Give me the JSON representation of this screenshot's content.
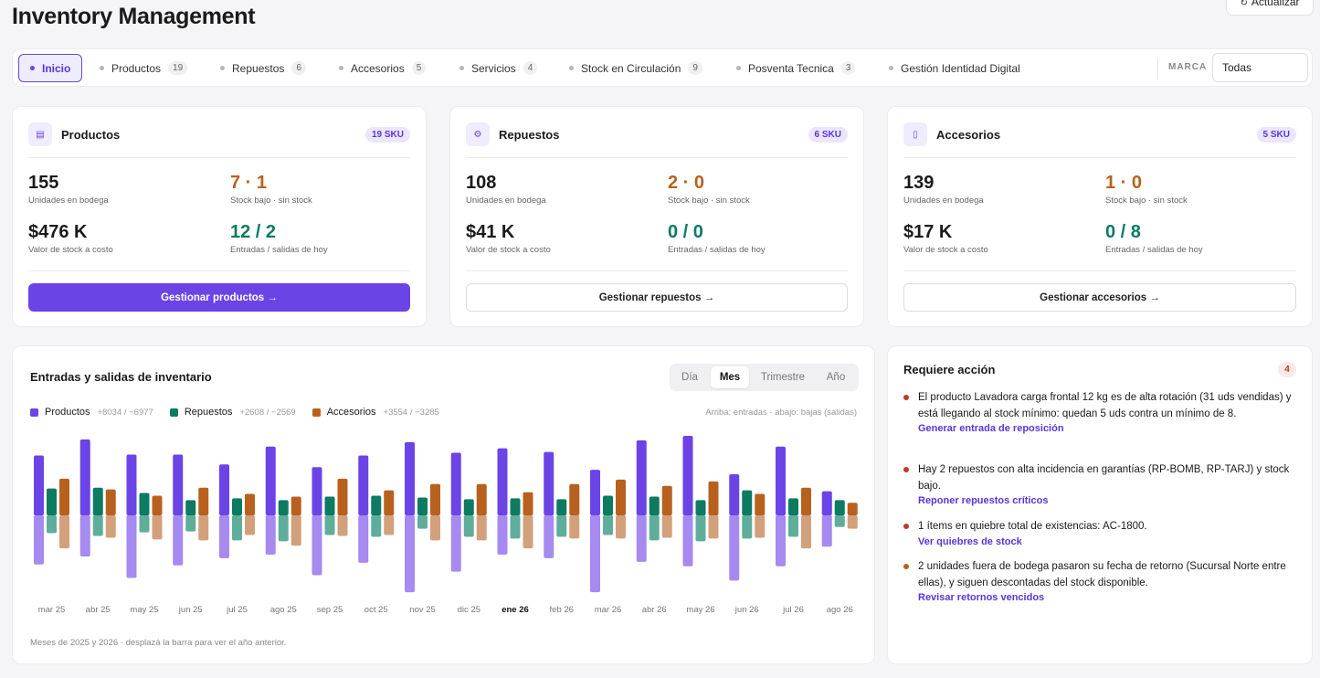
{
  "header": {
    "title": "Inventory Management",
    "refresh_label": "Actualizar",
    "refresh_icon": "refresh-icon"
  },
  "tabs": [
    {
      "label": "Inicio",
      "count": ""
    },
    {
      "label": "Productos",
      "count": "19"
    },
    {
      "label": "Repuestos",
      "count": "6"
    },
    {
      "label": "Accesorios",
      "count": "5"
    },
    {
      "label": "Servicios",
      "count": "4"
    },
    {
      "label": "Stock en Circulación",
      "count": "9"
    },
    {
      "label": "Posventa Tecnica",
      "count": "3"
    },
    {
      "label": "Gestión Identidad Digital",
      "count": ""
    }
  ],
  "brand_filter": {
    "label": "MARCA",
    "value": "Todas"
  },
  "cards": [
    {
      "title": "Productos",
      "icon": "box-icon",
      "sku": "19 SKU",
      "units": "155",
      "units_label": "Unidades en bodega",
      "stock": "7 · 1",
      "stock_label": "Stock bajo · sin stock",
      "value": "$476 K",
      "value_label": "Valor de stock a costo",
      "flow": "12 / 2",
      "flow_label": "Entradas / salidas de hoy",
      "button": "Gestionar productos →"
    },
    {
      "title": "Repuestos",
      "icon": "gear-icon",
      "sku": "6 SKU",
      "units": "108",
      "units_label": "Unidades en bodega",
      "stock": "2 · 0",
      "stock_label": "Stock bajo · sin stock",
      "value": "$41 K",
      "value_label": "Valor de stock a costo",
      "flow": "0 / 0",
      "flow_label": "Entradas / salidas de hoy",
      "button": "Gestionar repuestos →"
    },
    {
      "title": "Accesorios",
      "icon": "device-icon",
      "sku": "5 SKU",
      "units": "139",
      "units_label": "Unidades en bodega",
      "stock": "1 · 0",
      "stock_label": "Stock bajo · sin stock",
      "value": "$17 K",
      "value_label": "Valor de stock a costo",
      "flow": "0 / 8",
      "flow_label": "Entradas / salidas de hoy",
      "button": "Gestionar accesorios →"
    }
  ],
  "chart_panel": {
    "title": "Entradas y salidas de inventario",
    "periods": [
      "Día",
      "Mes",
      "Trimestre",
      "Año"
    ],
    "active_period": "Mes",
    "note": "Arriba: entradas · abajo: bajas (salidas)",
    "footnote": "Meses de 2025 y 2026 · desplazá la barra para ver el año anterior.",
    "legend_totals": [
      "+8034 / −6977",
      "+2608 / −2569",
      "+3554 / −3285"
    ],
    "highlighted_month": "ene 26"
  },
  "chart_data": {
    "type": "bar",
    "categories": [
      "mar 25",
      "abr 25",
      "may 25",
      "jun 25",
      "jul 25",
      "ago 25",
      "sep 25",
      "oct 25",
      "nov 25",
      "dic 25",
      "ene 26",
      "feb 26",
      "mar 26",
      "abr 26",
      "may 26",
      "jun 26",
      "jul 26",
      "ago 26"
    ],
    "series": [
      {
        "name": "Productos",
        "color": "#6b44e6",
        "color_out": "#a68af0",
        "entradas": [
          670,
          850,
          680,
          680,
          570,
          770,
          540,
          670,
          820,
          700,
          750,
          710,
          510,
          840,
          890,
          460,
          770,
          270
        ],
        "salidas": [
          550,
          460,
          700,
          560,
          480,
          440,
          670,
          530,
          860,
          630,
          440,
          480,
          860,
          520,
          570,
          730,
          570,
          350
        ]
      },
      {
        "name": "Repuestos",
        "color": "#0d7a62",
        "color_out": "#5fae9b",
        "entradas": [
          300,
          310,
          250,
          170,
          190,
          170,
          210,
          220,
          200,
          180,
          190,
          180,
          220,
          210,
          170,
          280,
          190,
          170
        ],
        "salidas": [
          200,
          230,
          190,
          180,
          280,
          290,
          220,
          240,
          150,
          240,
          260,
          240,
          220,
          280,
          290,
          260,
          240,
          130
        ]
      },
      {
        "name": "Accesorios",
        "color": "#b8611f",
        "color_out": "#d3a07c",
        "entradas": [
          410,
          290,
          220,
          310,
          240,
          210,
          410,
          280,
          350,
          350,
          260,
          350,
          400,
          330,
          380,
          240,
          310,
          140
        ],
        "salidas": [
          370,
          250,
          270,
          280,
          220,
          340,
          230,
          220,
          280,
          280,
          370,
          260,
          260,
          250,
          260,
          250,
          370,
          150
        ]
      }
    ],
    "ylim": [
      -900,
      900
    ],
    "legend_position": "top-left",
    "grid": false
  },
  "actions": {
    "title": "Requiere acción",
    "count": "4",
    "items": [
      {
        "text": "El producto Lavadora carga frontal 12 kg es de alta rotación (31 uds vendidas) y está llegando al stock mínimo: quedan 5 uds contra un mínimo de 8.",
        "link": "Generar entrada de reposición",
        "color": "#c0392b"
      },
      {
        "text": "Hay 2 repuestos con alta incidencia en garantías (RP-BOMB, RP-TARJ) y stock bajo.",
        "link": "Reponer repuestos críticos",
        "color": "#c0392b"
      },
      {
        "text": "1 ítems en quiebre total de existencias: AC-1800.",
        "link": "Ver quiebres de stock",
        "color": "#c0392b"
      },
      {
        "text": "2 unidades fuera de bodega pasaron su fecha de retorno (Sucursal Norte entre ellas), y siguen descontadas del stock disponible.",
        "link": "Revisar retornos vencidos",
        "color": "#b8611f"
      }
    ]
  }
}
